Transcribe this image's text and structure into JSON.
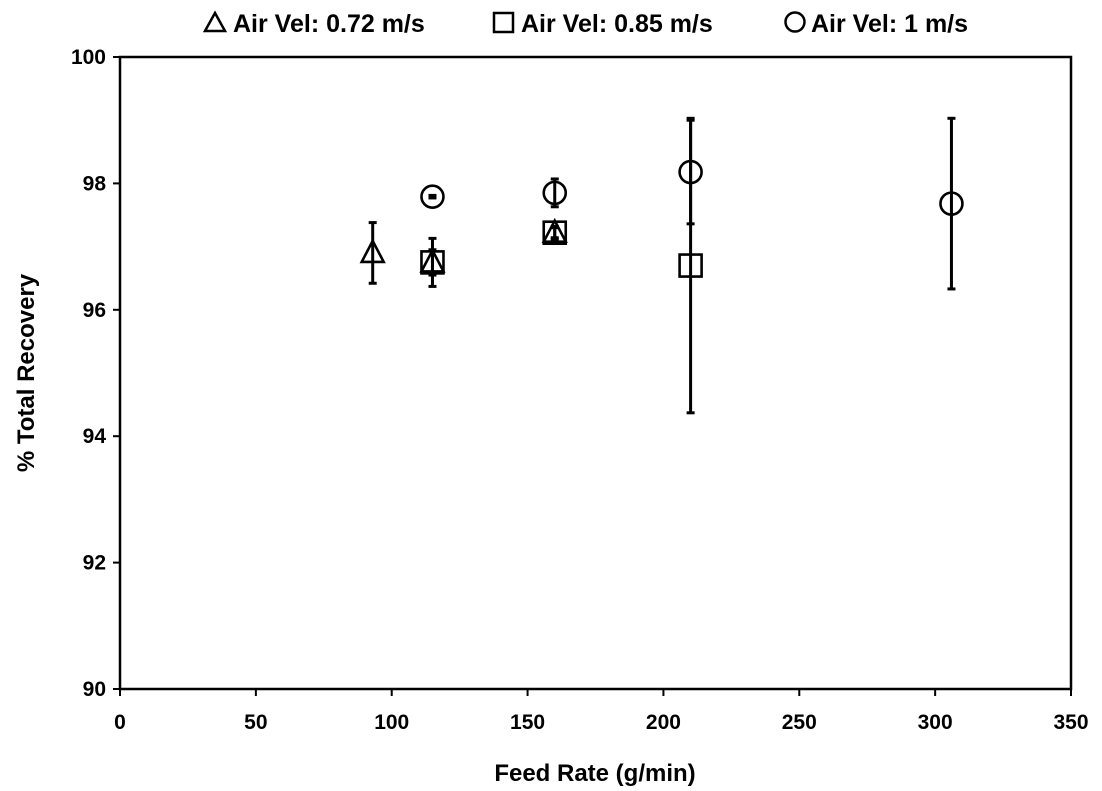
{
  "chart_data": {
    "type": "scatter",
    "title": "",
    "xlabel": "Feed Rate (g/min)",
    "ylabel": "% Total Recovery",
    "xlim": [
      0,
      350
    ],
    "ylim": [
      90,
      100
    ],
    "x_ticks": [
      0,
      50,
      100,
      150,
      200,
      250,
      300,
      350
    ],
    "y_ticks": [
      90,
      92,
      94,
      96,
      98,
      100
    ],
    "grid": false,
    "legend_position": "top",
    "series": [
      {
        "name": "Air Vel: 0.72 m/s",
        "marker": "triangle",
        "points": [
          {
            "x": 93,
            "y": 96.9,
            "err": 0.48
          },
          {
            "x": 115,
            "y": 96.75,
            "err": 0.2
          },
          {
            "x": 160,
            "y": 97.22,
            "err": 0.1
          }
        ]
      },
      {
        "name": "Air Vel: 0.85 m/s",
        "marker": "square",
        "points": [
          {
            "x": 115,
            "y": 96.75,
            "err": 0.38
          },
          {
            "x": 160,
            "y": 97.22,
            "err": 0.08
          },
          {
            "x": 210,
            "y": 96.7,
            "err": 2.33
          }
        ]
      },
      {
        "name": "Air Vel: 1 m/s",
        "marker": "circle",
        "points": [
          {
            "x": 115,
            "y": 97.79,
            "err": 0.02
          },
          {
            "x": 160,
            "y": 97.85,
            "err": 0.22
          },
          {
            "x": 210,
            "y": 98.18,
            "err": 0.82
          },
          {
            "x": 306,
            "y": 97.68,
            "err": 1.35
          }
        ]
      }
    ]
  }
}
